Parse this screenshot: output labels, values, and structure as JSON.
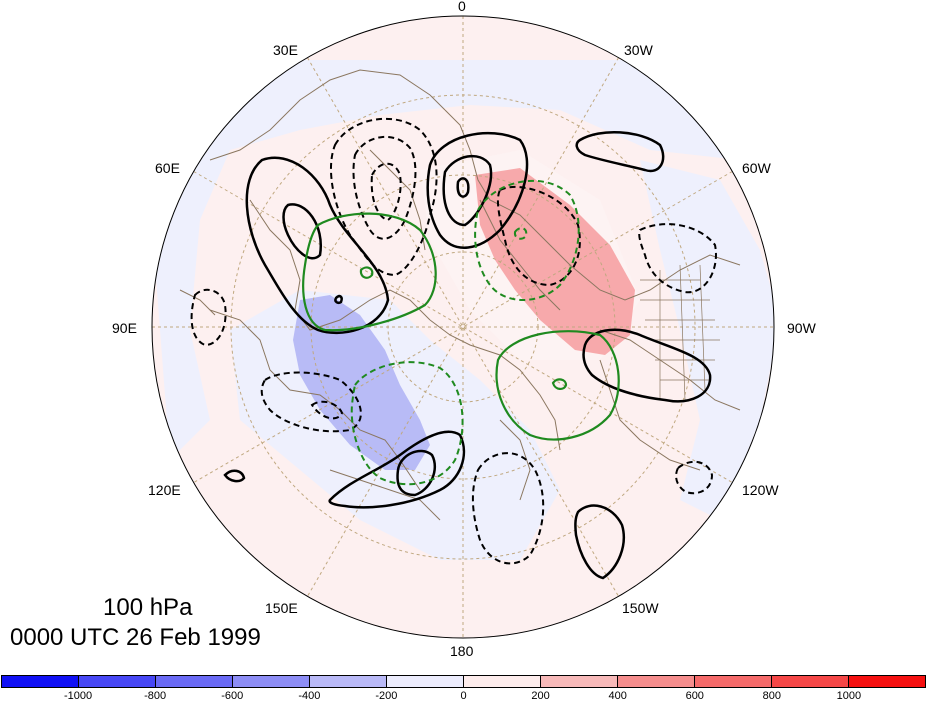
{
  "map": {
    "title_level": "100 hPa",
    "title_time": "0000 UTC 26 Feb 1999",
    "longitude_labels": {
      "top": "0",
      "top_left": "30E",
      "top_right": "30W",
      "upper_left": "60E",
      "upper_right": "60W",
      "left": "90E",
      "right": "90W",
      "lower_left": "120E",
      "lower_right": "120W",
      "bottom_left": "150E",
      "bottom_right": "150W",
      "bottom": "180"
    },
    "colors": {
      "positive_shading": "#f7a3a6",
      "light_positive": "#fdeeee",
      "negative_shading": "#b9bcf6",
      "light_negative": "#eeeffd",
      "coastline": "#8b7760",
      "grid": "#b8a27e",
      "contour_black": "#000000",
      "contour_green": "#1f8a1f"
    }
  },
  "colorbar": {
    "ticks": [
      "-1000",
      "-800",
      "-600",
      "-400",
      "-200",
      "0",
      "200",
      "400",
      "600",
      "800",
      "1000"
    ],
    "colors": [
      "#1010f5",
      "#4747f5",
      "#6a6af5",
      "#8d8df5",
      "#b9b9f7",
      "#ececfd",
      "#fdecec",
      "#f7b9b9",
      "#f58d8d",
      "#f56a6a",
      "#f54747",
      "#f51010"
    ]
  }
}
